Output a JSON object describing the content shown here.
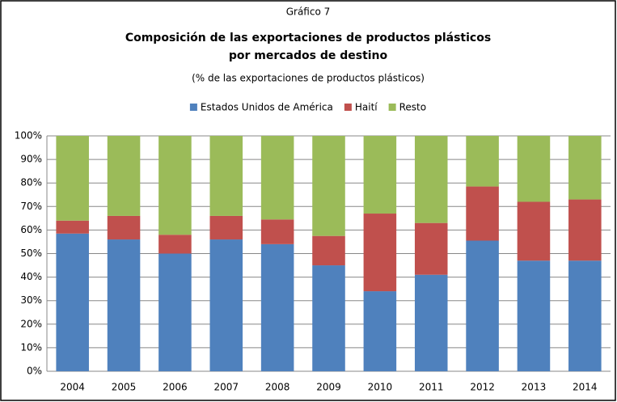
{
  "chart_data": {
    "type": "stacked_bar",
    "label": "Gráfico 7",
    "title": [
      "Composición de las exportaciones de productos plásticos",
      "por mercados de destino"
    ],
    "subtitle": "(% de las exportaciones de productos plásticos)",
    "categories": [
      "2004",
      "2005",
      "2006",
      "2007",
      "2008",
      "2009",
      "2010",
      "2011",
      "2012",
      "2013",
      "2014"
    ],
    "series": [
      {
        "name": "Estados Unidos de América",
        "color": "#4f81bd",
        "values": [
          58.5,
          56,
          50,
          56,
          54,
          45,
          34,
          41,
          55.5,
          47,
          47
        ]
      },
      {
        "name": "Haití",
        "color": "#c0504d",
        "values": [
          5.5,
          10,
          8,
          10,
          10.5,
          12.5,
          33,
          22,
          23,
          25,
          26
        ]
      },
      {
        "name": "Resto",
        "color": "#9bbb59",
        "values": [
          36,
          34,
          42,
          34,
          35.5,
          42.5,
          33,
          37,
          21.5,
          28,
          27
        ]
      }
    ],
    "ylim": [
      0,
      100
    ],
    "yticks": [
      {
        "value": 0,
        "label": "0%"
      },
      {
        "value": 10,
        "label": "10%"
      },
      {
        "value": 20,
        "label": "20%"
      },
      {
        "value": 30,
        "label": "30%"
      },
      {
        "value": 40,
        "label": "40%"
      },
      {
        "value": 50,
        "label": "50%"
      },
      {
        "value": 60,
        "label": "60%"
      },
      {
        "value": 70,
        "label": "70%"
      },
      {
        "value": 80,
        "label": "80%"
      },
      {
        "value": 90,
        "label": "90%"
      },
      {
        "value": 100,
        "label": "100%"
      }
    ],
    "grid": true,
    "legend": "top"
  }
}
